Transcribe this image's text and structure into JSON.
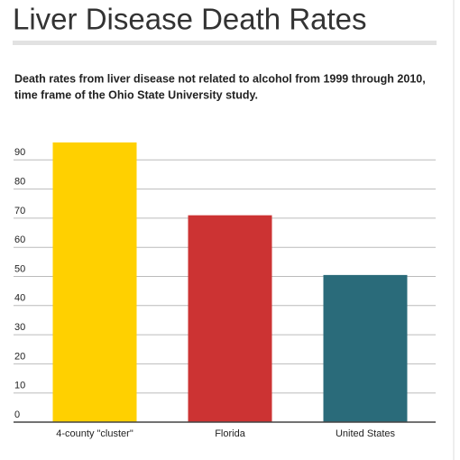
{
  "chart_data": {
    "type": "bar",
    "title": "Liver Disease Death Rates",
    "subtitle": [
      "Death rates from liver disease not related to alcohol from 1999 through 2010,",
      "time frame of the Ohio State University study."
    ],
    "categories": [
      "4-county \"cluster\"",
      "Florida",
      "United States"
    ],
    "values": [
      96,
      71,
      50.5
    ],
    "colors": [
      "#ffd000",
      "#cc3333",
      "#2a6b7a"
    ],
    "ylim": [
      0,
      100
    ],
    "yticks": [
      0,
      10,
      20,
      30,
      40,
      50,
      60,
      70,
      80,
      90
    ],
    "grid": true
  }
}
